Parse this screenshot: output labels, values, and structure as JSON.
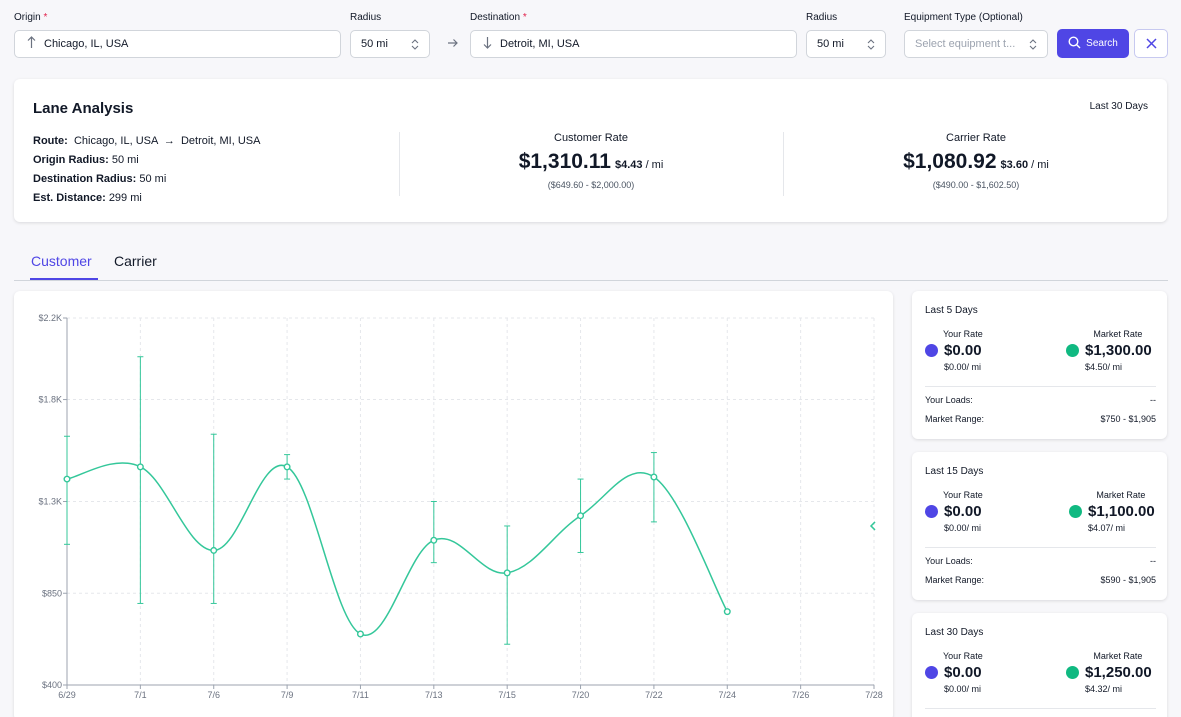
{
  "search": {
    "origin_label": "Origin",
    "origin_value": "Chicago, IL, USA",
    "origin_radius_label": "Radius",
    "origin_radius_value": "50 mi",
    "destination_label": "Destination",
    "destination_value": "Detroit, MI, USA",
    "destination_radius_label": "Radius",
    "destination_radius_value": "50 mi",
    "equipment_label": "Equipment Type (Optional)",
    "equipment_placeholder": "Select equipment t...",
    "search_label": "Search",
    "required_mark": "*"
  },
  "lane": {
    "title": "Lane Analysis",
    "period": "Last 30 Days",
    "route_label": "Route:",
    "route_origin": "Chicago, IL, USA",
    "route_arrow": "→",
    "route_destination": "Detroit, MI, USA",
    "origin_radius_label": "Origin Radius:",
    "origin_radius_value": "50 mi",
    "destination_radius_label": "Destination Radius:",
    "destination_radius_value": "50 mi",
    "distance_label": "Est. Distance:",
    "distance_value": "299 mi",
    "customer": {
      "label": "Customer Rate",
      "value": "$1,310.11",
      "per_mile": "$4.43",
      "per_mile_unit": "/ mi",
      "range": "($649.60 - $2,000.00)"
    },
    "carrier": {
      "label": "Carrier Rate",
      "value": "$1,080.92",
      "per_mile": "$3.60",
      "per_mile_unit": "/ mi",
      "range": "($490.00 - $1,602.50)"
    }
  },
  "tabs": [
    {
      "label": "Customer",
      "active": true
    },
    {
      "label": "Carrier",
      "active": false
    }
  ],
  "colors": {
    "accent": "#4f46e5",
    "series": "#34c79a",
    "your_rate_dot": "#4f46e5",
    "market_rate_dot": "#10b981"
  },
  "chart_data": {
    "type": "line",
    "x": [
      "6/29",
      "7/1",
      "7/6",
      "7/9",
      "7/11",
      "7/13",
      "7/15",
      "7/20",
      "7/22",
      "7/24",
      "7/26",
      "7/28"
    ],
    "y_ticks": [
      "$400",
      "$850",
      "$1.3K",
      "$1.8K",
      "$2.2K"
    ],
    "y_tick_values": [
      400,
      850,
      1300,
      1800,
      2200
    ],
    "ylim": [
      400,
      2200
    ],
    "grid": true,
    "series": [
      {
        "values": [
          1410,
          1470,
          1060,
          1470,
          650,
          1110,
          950,
          1230,
          1420,
          760,
          null,
          null
        ],
        "error_low": [
          1090,
          800,
          800,
          1410,
          null,
          1000,
          600,
          1050,
          1200,
          null,
          null,
          null
        ],
        "error_high": [
          1620,
          2010,
          1630,
          1530,
          null,
          1300,
          1180,
          1410,
          1540,
          null,
          null,
          null
        ]
      }
    ]
  },
  "side_cards": [
    {
      "title": "Last 5 Days",
      "your_rate_label": "Your Rate",
      "your_rate": "$0.00",
      "your_rate_per_mile": "$0.00/ mi",
      "market_rate_label": "Market Rate",
      "market_rate": "$1,300.00",
      "market_rate_per_mile": "$4.50/ mi",
      "loads_label": "Your Loads:",
      "loads_value": "--",
      "range_label": "Market Range:",
      "range_value": "$750 - $1,905"
    },
    {
      "title": "Last 15 Days",
      "your_rate_label": "Your Rate",
      "your_rate": "$0.00",
      "your_rate_per_mile": "$0.00/ mi",
      "market_rate_label": "Market Rate",
      "market_rate": "$1,100.00",
      "market_rate_per_mile": "$4.07/ mi",
      "loads_label": "Your Loads:",
      "loads_value": "--",
      "range_label": "Market Range:",
      "range_value": "$590 - $1,905"
    },
    {
      "title": "Last 30 Days",
      "your_rate_label": "Your Rate",
      "your_rate": "$0.00",
      "your_rate_per_mile": "$0.00/ mi",
      "market_rate_label": "Market Rate",
      "market_rate": "$1,250.00",
      "market_rate_per_mile": "$4.32/ mi"
    }
  ]
}
